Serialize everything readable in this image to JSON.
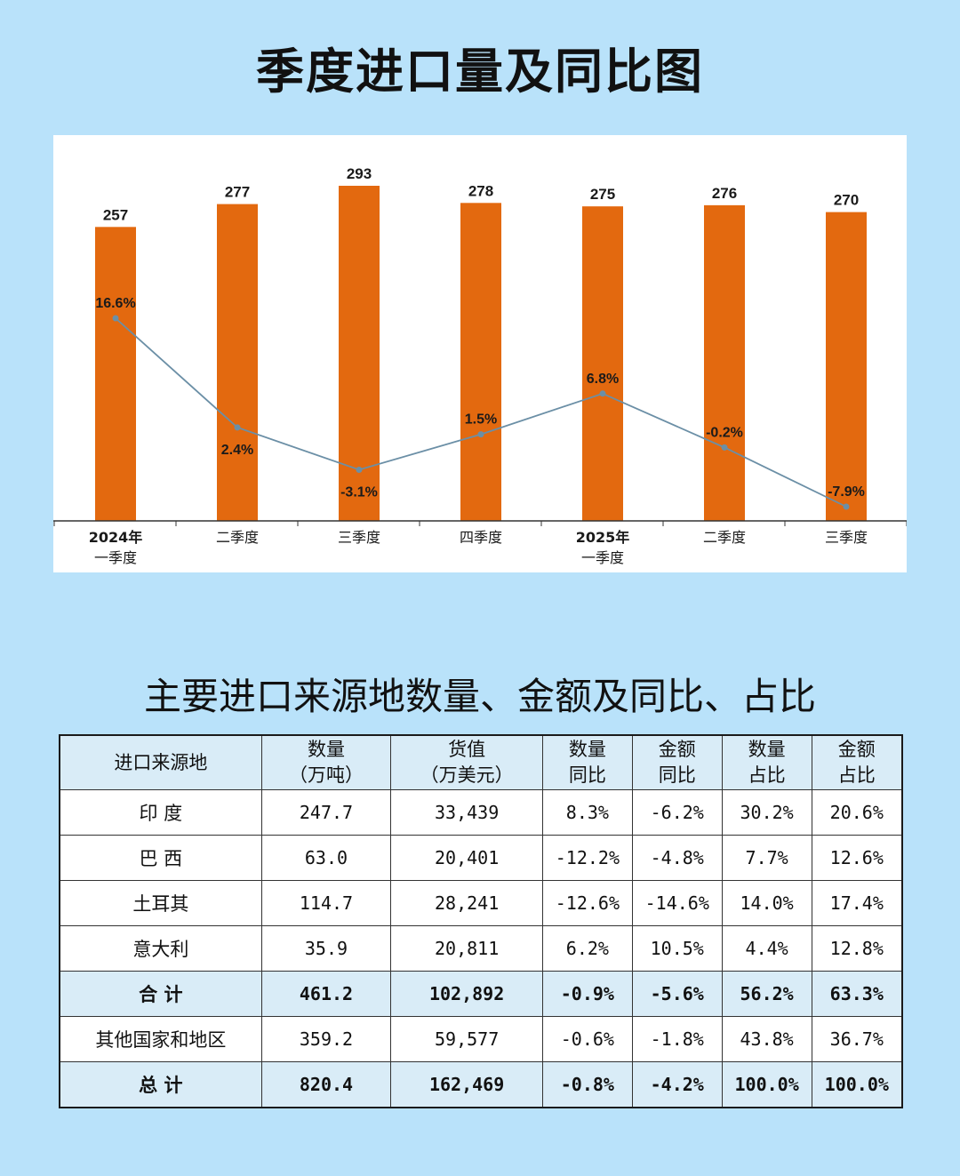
{
  "title": "季度进口量及同比图",
  "chart_data": {
    "type": "bar",
    "categories": [
      {
        "line1": "2024年",
        "line2": "一季度"
      },
      {
        "line1": "二季度",
        "line2": ""
      },
      {
        "line1": "三季度",
        "line2": ""
      },
      {
        "line1": "四季度",
        "line2": ""
      },
      {
        "line1": "2025年",
        "line2": "一季度"
      },
      {
        "line1": "二季度",
        "line2": ""
      },
      {
        "line1": "三季度",
        "line2": ""
      }
    ],
    "series": [
      {
        "type": "bar",
        "values": [
          257,
          277,
          293,
          278,
          275,
          276,
          270
        ],
        "color": "#e3690f"
      },
      {
        "type": "line",
        "values": [
          16.6,
          2.4,
          -3.1,
          1.5,
          6.8,
          -0.2,
          -7.9
        ],
        "labels": [
          "16.6%",
          "2.4%",
          "-3.1%",
          "1.5%",
          "6.8%",
          "-0.2%",
          "-7.9%"
        ],
        "color": "#6b8fa6"
      }
    ],
    "bar_ylim": [
      0,
      293
    ],
    "line_ylim": [
      -7.9,
      16.6
    ],
    "grid": false,
    "legend": "none"
  },
  "table": {
    "title": "主要进口来源地数量、金额及同比、占比",
    "headers": [
      {
        "line1": "进口来源地",
        "line2": ""
      },
      {
        "line1": "数量",
        "line2": "（万吨）"
      },
      {
        "line1": "货值",
        "line2": "（万美元）"
      },
      {
        "line1": "数量",
        "line2": "同比"
      },
      {
        "line1": "金额",
        "line2": "同比"
      },
      {
        "line1": "数量",
        "line2": "占比"
      },
      {
        "line1": "金额",
        "line2": "占比"
      }
    ],
    "rows": [
      {
        "cells": [
          "印 度",
          "247.7",
          "33,439",
          "8.3%",
          "-6.2%",
          "30.2%",
          "20.6%"
        ],
        "bold": false
      },
      {
        "cells": [
          "巴 西",
          "63.0",
          "20,401",
          "-12.2%",
          "-4.8%",
          "7.7%",
          "12.6%"
        ],
        "bold": false
      },
      {
        "cells": [
          "土耳其",
          "114.7",
          "28,241",
          "-12.6%",
          "-14.6%",
          "14.0%",
          "17.4%"
        ],
        "bold": false
      },
      {
        "cells": [
          "意大利",
          "35.9",
          "20,811",
          "6.2%",
          "10.5%",
          "4.4%",
          "12.8%"
        ],
        "bold": false
      },
      {
        "cells": [
          "合 计",
          "461.2",
          "102,892",
          "-0.9%",
          "-5.6%",
          "56.2%",
          "63.3%"
        ],
        "bold": true
      },
      {
        "cells": [
          "其他国家和地区",
          "359.2",
          "59,577",
          "-0.6%",
          "-1.8%",
          "43.8%",
          "36.7%"
        ],
        "bold": false
      },
      {
        "cells": [
          "总 计",
          "820.4",
          "162,469",
          "-0.8%",
          "-4.2%",
          "100.0%",
          "100.0%"
        ],
        "bold": true
      }
    ]
  }
}
